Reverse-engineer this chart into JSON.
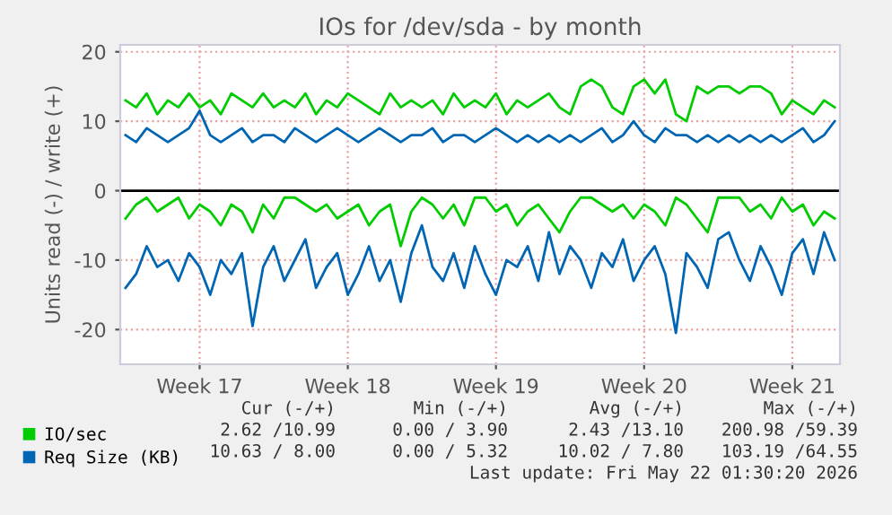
{
  "chart_data": {
    "type": "line",
    "title": "IOs for /dev/sda - by month",
    "ylabel": "Units read (-) / write (+)",
    "categories": [
      null,
      null,
      null,
      null,
      null,
      null,
      null,
      "Week 17",
      null,
      null,
      null,
      null,
      null,
      null,
      null,
      null,
      null,
      null,
      null,
      null,
      null,
      "Week 18",
      null,
      null,
      null,
      null,
      null,
      null,
      null,
      null,
      null,
      null,
      null,
      null,
      null,
      "Week 19",
      null,
      null,
      null,
      null,
      null,
      null,
      null,
      null,
      null,
      null,
      null,
      null,
      null,
      "Week 20",
      null,
      null,
      null,
      null,
      null,
      null,
      null,
      null,
      null,
      null,
      null,
      null,
      null,
      "Week 21",
      null,
      null,
      null,
      null
    ],
    "series": [
      {
        "name": "IO/sec",
        "color": "#00cc00",
        "values": [
          13,
          12,
          14,
          11,
          13,
          12,
          14,
          12,
          13,
          11,
          14,
          13,
          12,
          14,
          12,
          13,
          12,
          14,
          11,
          13,
          12,
          14,
          13,
          12,
          11,
          14,
          12,
          13,
          12,
          13,
          11,
          14,
          12,
          13,
          12,
          14,
          11,
          13,
          12,
          13,
          14,
          12,
          11,
          15,
          16,
          15,
          12,
          11,
          15,
          16,
          14,
          16,
          11,
          10,
          15,
          14,
          15,
          15,
          14,
          15,
          15,
          14,
          11,
          13,
          12,
          11,
          13,
          12
        ]
      },
      {
        "name": "Req Size (KB)",
        "color": "#0066b3",
        "values": [
          8,
          7,
          9,
          8,
          7,
          8,
          9,
          11.5,
          8,
          7,
          8,
          9,
          7,
          8,
          8,
          7,
          9,
          8,
          7,
          8,
          9,
          8,
          7,
          8,
          9,
          8,
          7,
          8,
          8,
          9,
          7,
          8,
          8,
          7,
          8,
          9,
          8,
          7,
          8,
          7,
          8,
          7,
          8,
          7,
          8,
          9,
          7,
          8,
          10,
          8,
          7,
          9,
          8,
          8,
          7,
          8,
          7,
          8,
          7,
          8,
          7,
          8,
          7,
          8,
          9,
          7,
          8,
          10
        ]
      },
      {
        "color": "#00cc00",
        "values": [
          -4,
          -2,
          -1,
          -3,
          -2,
          -1,
          -4,
          -2,
          -3,
          -5,
          -2,
          -3,
          -6,
          -2,
          -4,
          -1,
          -1,
          -2,
          -3,
          -2,
          -4,
          -3,
          -2,
          -5,
          -3,
          -2,
          -8,
          -3,
          -1,
          -2,
          -4,
          -2,
          -5,
          -1,
          -1,
          -3,
          -2,
          -5,
          -3,
          -2,
          -4,
          -6,
          -3,
          -1,
          -1,
          -2,
          -3,
          -2,
          -4,
          -2,
          -3,
          -5,
          -1,
          -2,
          -4,
          -6,
          -1,
          -1,
          -1,
          -3,
          -2,
          -4,
          -1,
          -3,
          -2,
          -5,
          -3,
          -4
        ]
      },
      {
        "color": "#0066b3",
        "values": [
          -14,
          -12,
          -8,
          -11,
          -10,
          -13,
          -9,
          -11,
          -15,
          -10,
          -12,
          -9,
          -19.5,
          -11,
          -8,
          -13,
          -10,
          -7,
          -14,
          -11,
          -9,
          -15,
          -12,
          -8,
          -13,
          -10,
          -16,
          -9,
          -5,
          -11,
          -13,
          -9,
          -14,
          -8,
          -12,
          -15,
          -10,
          -11,
          -8,
          -13,
          -6,
          -12,
          -8,
          -10,
          -14,
          -9,
          -11,
          -7,
          -13,
          -10,
          -8,
          -12,
          -20.5,
          -9,
          -11,
          -14,
          -7,
          -6,
          -10,
          -13,
          -8,
          -11,
          -15,
          -9,
          -7,
          -12,
          -6,
          -10
        ]
      }
    ],
    "ylim": [
      -25,
      21
    ],
    "yticks": [
      -20,
      -10,
      0,
      10,
      20
    ],
    "ref_lines": [
      {
        "axis": "y",
        "value": 0,
        "color": "#000000"
      }
    ],
    "grid": true,
    "legend": "bottom left",
    "line_style": "solid",
    "marker": "none",
    "annotations": [
      "Cur (-/+)",
      "Min (-/+)",
      "Avg (-/+)",
      "Max (-/+)",
      "2.62 /10.99",
      "0.00 / 3.90",
      "2.43 /13.10",
      "200.98 /59.39",
      "10.63 / 8.00",
      "0.00 / 5.32",
      "10.02 / 7.80",
      "103.19 /64.55",
      "Last update: Fri May 22 01:30:20 2026"
    ]
  }
}
